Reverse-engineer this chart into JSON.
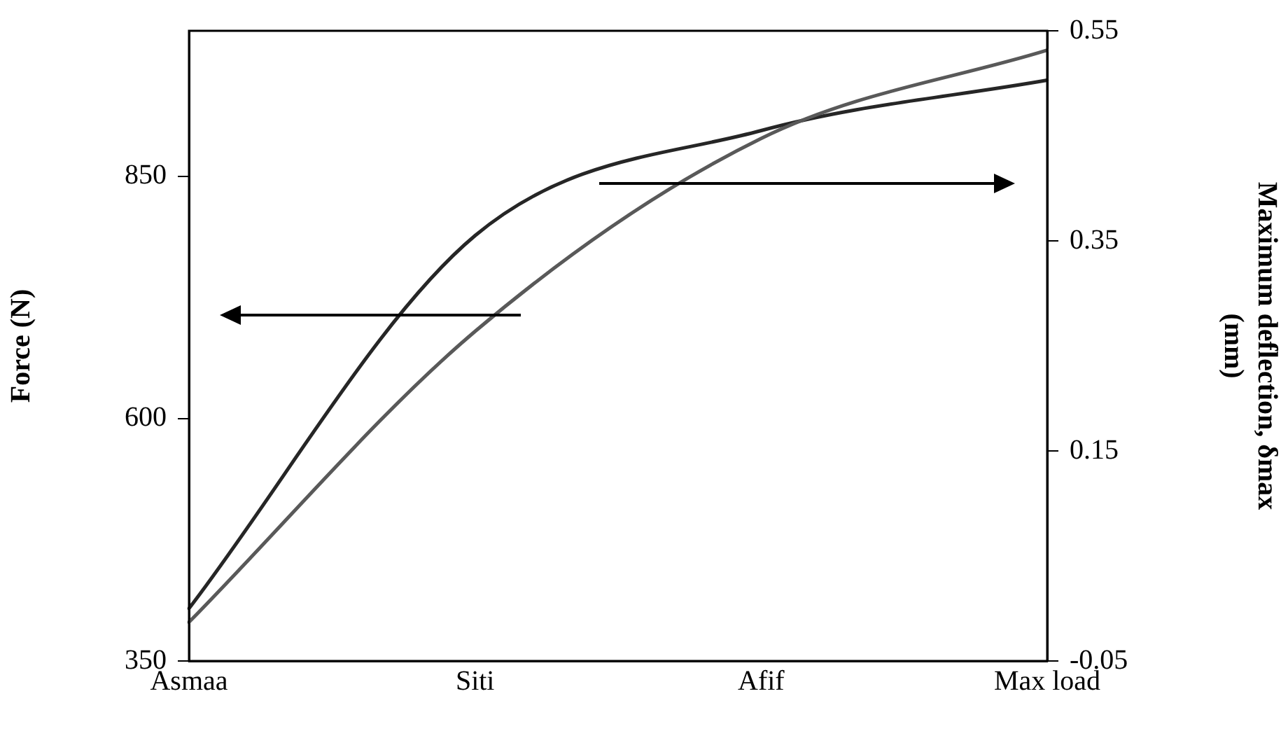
{
  "chart_data": {
    "type": "line",
    "categories": [
      "Asmaa",
      "Siti",
      "Afif",
      "Max load"
    ],
    "ylabel": "Force (N)",
    "y2label": "Maximum deflection, δmax (mm)",
    "series": [
      {
        "color": "#595959",
        "values": [
          390,
          690,
          889,
          980
        ]
      },
      {
        "color": "#262626",
        "values": [
          0.0,
          0.355,
          0.455,
          0.503
        ],
        "axis": "y2"
      }
    ],
    "ylim": [
      350,
      1000
    ],
    "yticks": [
      350,
      600,
      850
    ],
    "y2lim": [
      -0.05,
      0.55
    ],
    "y2ticks": [
      -0.05,
      0.15,
      0.35,
      0.55
    ],
    "grid": false,
    "legend": false,
    "marker": "none",
    "line_style": "solid"
  }
}
